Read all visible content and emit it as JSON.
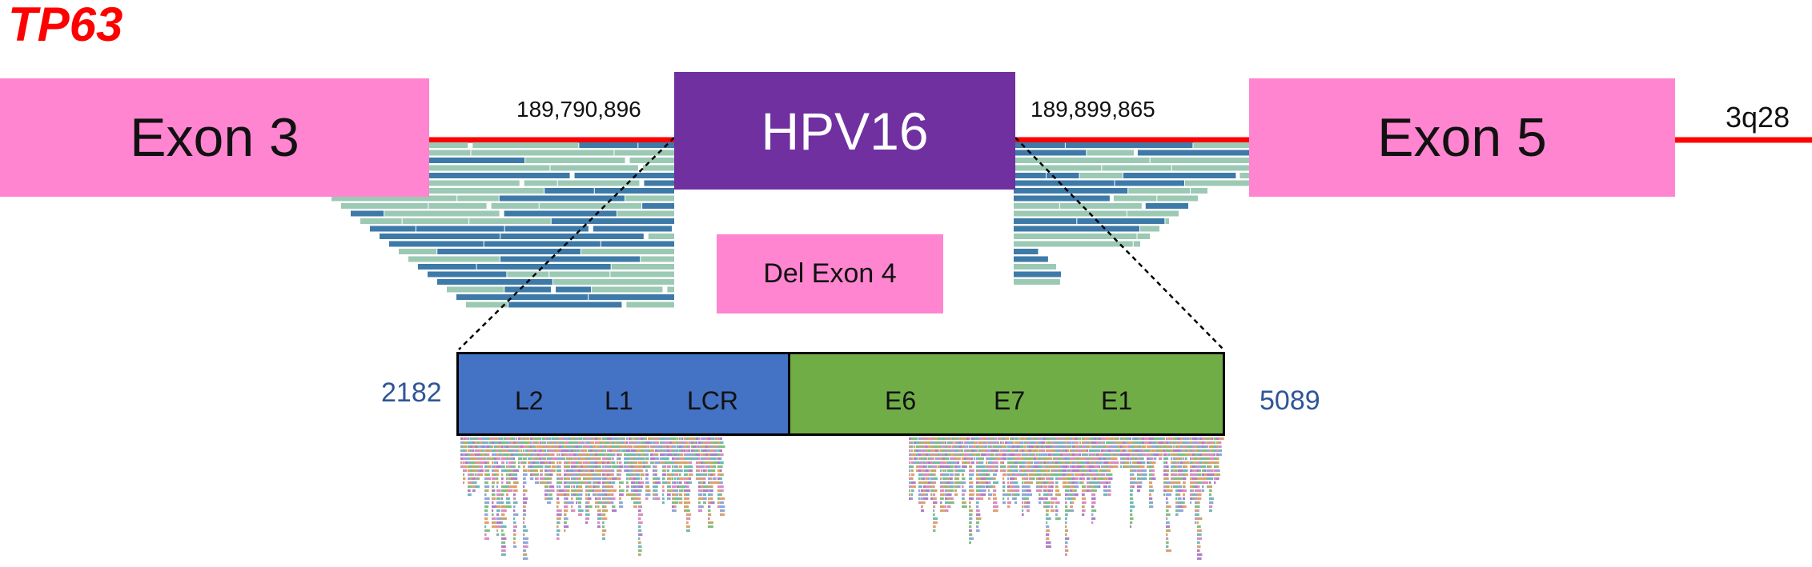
{
  "gene": "TP63",
  "chromosome_band": "3q28",
  "exons": {
    "left": "Exon 3",
    "right": "Exon 5",
    "deleted": "Del Exon 4"
  },
  "insert": {
    "label": "HPV16",
    "left_breakpoint": "189,790,896",
    "right_breakpoint": "189,899,865"
  },
  "hpv_genome": {
    "start": "2182",
    "end": "5089",
    "left_segment_genes": [
      "L2",
      "L1",
      "LCR"
    ],
    "right_segment_genes": [
      "E6",
      "E7",
      "E1"
    ]
  },
  "colors": {
    "gene_title": "#ff0000",
    "exon": "#ff85d0",
    "hpv": "#7030a0",
    "chromosome_line": "#ff0000",
    "segment_left": "#4472c4",
    "segment_right": "#70ad47",
    "read_dark": "#3d7aa8",
    "read_light": "#9cc9b4"
  }
}
